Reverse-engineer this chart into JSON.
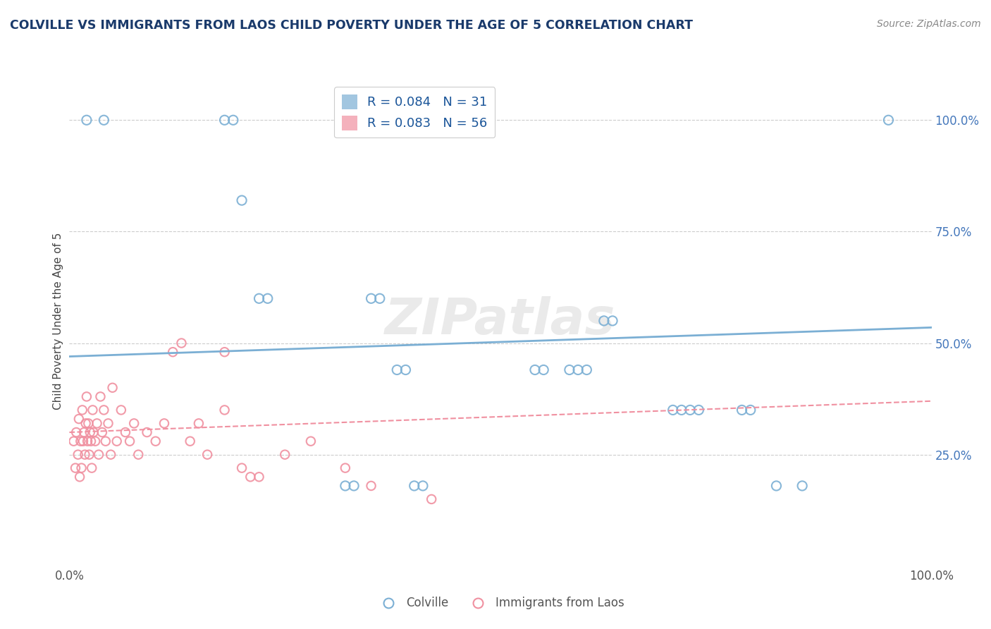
{
  "title": "COLVILLE VS IMMIGRANTS FROM LAOS CHILD POVERTY UNDER THE AGE OF 5 CORRELATION CHART",
  "source": "Source: ZipAtlas.com",
  "ylabel": "Child Poverty Under the Age of 5",
  "colville_color": "#7bafd4",
  "laos_color": "#f090a0",
  "colville_R": 0.084,
  "colville_N": 31,
  "laos_R": 0.083,
  "laos_N": 56,
  "colville_x": [
    0.02,
    0.04,
    0.18,
    0.19,
    0.2,
    0.22,
    0.23,
    0.35,
    0.36,
    0.38,
    0.39,
    0.32,
    0.33,
    0.54,
    0.55,
    0.58,
    0.59,
    0.6,
    0.62,
    0.63,
    0.7,
    0.71,
    0.72,
    0.73,
    0.78,
    0.79,
    0.82,
    0.95,
    0.4,
    0.41,
    0.85
  ],
  "colville_y": [
    1.0,
    1.0,
    1.0,
    1.0,
    0.82,
    0.6,
    0.6,
    0.6,
    0.6,
    0.44,
    0.44,
    0.18,
    0.18,
    0.44,
    0.44,
    0.44,
    0.44,
    0.44,
    0.55,
    0.55,
    0.35,
    0.35,
    0.35,
    0.35,
    0.35,
    0.35,
    0.18,
    1.0,
    0.18,
    0.18,
    0.18
  ],
  "laos_x": [
    0.005,
    0.007,
    0.008,
    0.01,
    0.011,
    0.012,
    0.013,
    0.014,
    0.015,
    0.016,
    0.017,
    0.018,
    0.019,
    0.02,
    0.021,
    0.022,
    0.023,
    0.024,
    0.025,
    0.026,
    0.027,
    0.028,
    0.03,
    0.032,
    0.034,
    0.036,
    0.038,
    0.04,
    0.042,
    0.045,
    0.048,
    0.05,
    0.055,
    0.06,
    0.065,
    0.07,
    0.075,
    0.08,
    0.09,
    0.1,
    0.11,
    0.12,
    0.13,
    0.14,
    0.15,
    0.16,
    0.18,
    0.2,
    0.22,
    0.25,
    0.28,
    0.32,
    0.35,
    0.42,
    0.18,
    0.21
  ],
  "laos_y": [
    0.28,
    0.22,
    0.3,
    0.25,
    0.33,
    0.2,
    0.28,
    0.22,
    0.35,
    0.28,
    0.3,
    0.25,
    0.32,
    0.38,
    0.28,
    0.32,
    0.25,
    0.3,
    0.28,
    0.22,
    0.35,
    0.3,
    0.28,
    0.32,
    0.25,
    0.38,
    0.3,
    0.35,
    0.28,
    0.32,
    0.25,
    0.4,
    0.28,
    0.35,
    0.3,
    0.28,
    0.32,
    0.25,
    0.3,
    0.28,
    0.32,
    0.48,
    0.5,
    0.28,
    0.32,
    0.25,
    0.35,
    0.22,
    0.2,
    0.25,
    0.28,
    0.22,
    0.18,
    0.15,
    0.48,
    0.2
  ],
  "colville_trend": [
    0.47,
    0.535
  ],
  "laos_trend": [
    0.3,
    0.37
  ],
  "xlim": [
    0.0,
    1.0
  ],
  "ylim": [
    0.0,
    1.1
  ],
  "ytick_positions": [
    0.25,
    0.5,
    0.75,
    1.0
  ],
  "ytick_labels": [
    "25.0%",
    "50.0%",
    "75.0%",
    "100.0%"
  ],
  "grid_color": "#cccccc",
  "background_color": "#ffffff",
  "title_color": "#1a3a6b",
  "source_color": "#888888",
  "legend_text_color": "#1a5599",
  "watermark_text": "ZIPatlas"
}
